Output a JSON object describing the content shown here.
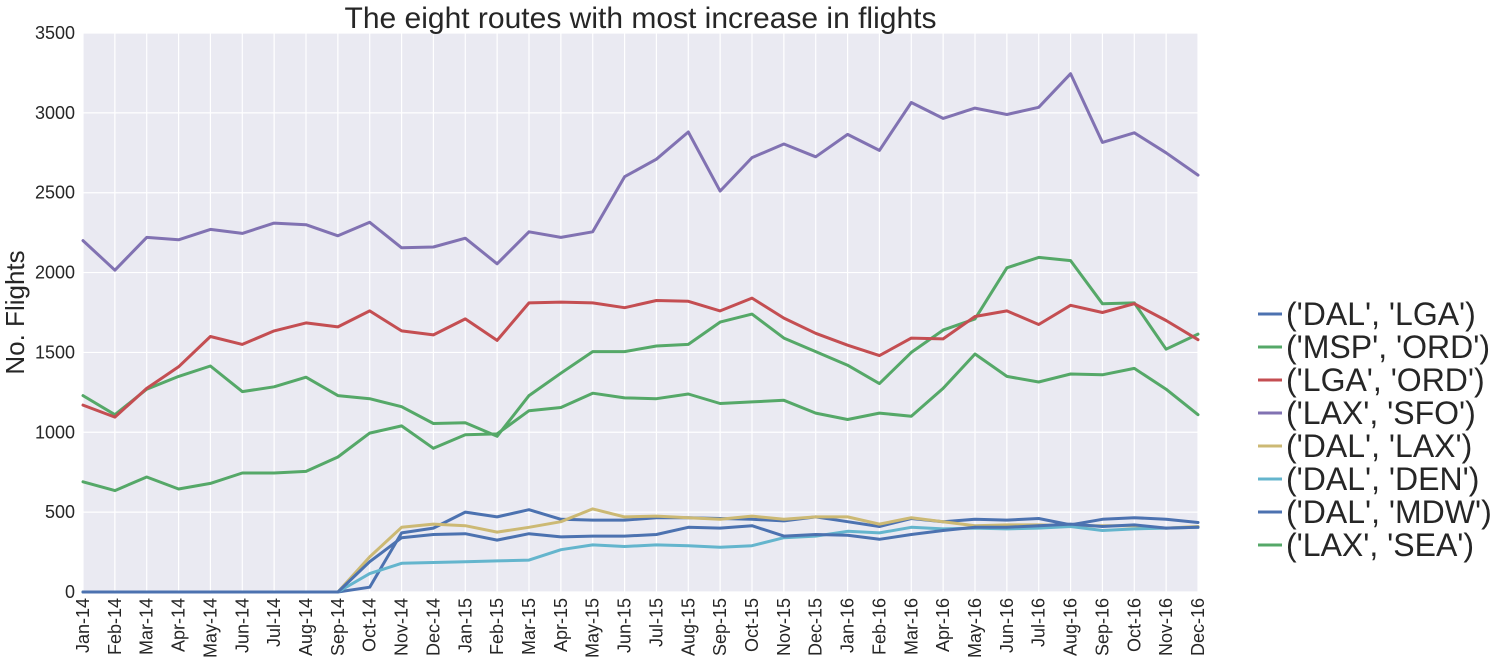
{
  "chart_data": {
    "type": "line",
    "title": "The eight routes with most increase in flights",
    "xlabel": "",
    "ylabel": "No. Flights",
    "ylim": [
      0,
      3500
    ],
    "yticks": [
      0,
      500,
      1000,
      1500,
      2000,
      2500,
      3000,
      3500
    ],
    "grid": true,
    "legend_position": "right",
    "plot_background": "#eaeaf2",
    "categories": [
      "Jan-14",
      "Feb-14",
      "Mar-14",
      "Apr-14",
      "May-14",
      "Jun-14",
      "Jul-14",
      "Aug-14",
      "Sep-14",
      "Oct-14",
      "Nov-14",
      "Dec-14",
      "Jan-15",
      "Feb-15",
      "Mar-15",
      "Apr-15",
      "May-15",
      "Jun-15",
      "Jul-15",
      "Aug-15",
      "Sep-15",
      "Oct-15",
      "Nov-15",
      "Dec-15",
      "Jan-16",
      "Feb-16",
      "Mar-16",
      "Apr-16",
      "May-16",
      "Jun-16",
      "Jul-16",
      "Aug-16",
      "Sep-16",
      "Oct-16",
      "Nov-16",
      "Dec-16"
    ],
    "series": [
      {
        "name": "('DAL', 'LGA')",
        "color": "#4c72b0",
        "values": [
          0,
          0,
          0,
          0,
          0,
          0,
          0,
          0,
          0,
          30,
          370,
          400,
          500,
          470,
          515,
          455,
          450,
          450,
          465,
          465,
          460,
          455,
          445,
          470,
          440,
          410,
          460,
          440,
          455,
          450,
          460,
          420,
          455,
          465,
          455,
          435
        ]
      },
      {
        "name": "('MSP', 'ORD')",
        "color": "#55a868",
        "values": [
          1230,
          1110,
          1270,
          1350,
          1415,
          1255,
          1285,
          1345,
          1230,
          1210,
          1160,
          1055,
          1060,
          975,
          1230,
          1370,
          1505,
          1505,
          1540,
          1550,
          1690,
          1740,
          1590,
          1505,
          1420,
          1305,
          1500,
          1640,
          1710,
          2030,
          2095,
          2075,
          1805,
          1810,
          1520,
          1615
        ]
      },
      {
        "name": "('LGA', 'ORD')",
        "color": "#c44e52",
        "values": [
          1170,
          1095,
          1275,
          1410,
          1600,
          1550,
          1635,
          1685,
          1660,
          1760,
          1635,
          1610,
          1710,
          1575,
          1810,
          1815,
          1810,
          1780,
          1825,
          1820,
          1760,
          1840,
          1715,
          1620,
          1545,
          1480,
          1590,
          1585,
          1725,
          1760,
          1675,
          1795,
          1750,
          1805,
          1700,
          1580
        ]
      },
      {
        "name": "('LAX', 'SFO')",
        "color": "#8172b2",
        "values": [
          2200,
          2015,
          2220,
          2205,
          2270,
          2245,
          2310,
          2300,
          2230,
          2315,
          2155,
          2160,
          2215,
          2055,
          2255,
          2220,
          2255,
          2600,
          2710,
          2880,
          2510,
          2720,
          2805,
          2725,
          2865,
          2765,
          3065,
          2965,
          3030,
          2990,
          3035,
          3245,
          2815,
          2875,
          2750,
          2610
        ]
      },
      {
        "name": "('DAL', 'LAX')",
        "color": "#ccb974",
        "values": [
          0,
          0,
          0,
          0,
          0,
          0,
          0,
          0,
          0,
          220,
          405,
          425,
          415,
          375,
          405,
          440,
          520,
          470,
          475,
          465,
          455,
          475,
          455,
          470,
          470,
          425,
          465,
          440,
          415,
          420,
          420,
          415,
          415,
          415,
          400,
          410
        ]
      },
      {
        "name": "('DAL', 'DEN')",
        "color": "#64b5cd",
        "values": [
          0,
          0,
          0,
          0,
          0,
          0,
          0,
          0,
          0,
          115,
          180,
          185,
          190,
          195,
          200,
          265,
          295,
          285,
          295,
          290,
          280,
          290,
          340,
          350,
          380,
          370,
          405,
          395,
          400,
          395,
          400,
          410,
          385,
          395,
          400,
          405
        ]
      },
      {
        "name": "('DAL', 'MDW')",
        "color": "#4c72b0",
        "values": [
          0,
          0,
          0,
          0,
          0,
          0,
          0,
          0,
          0,
          190,
          340,
          360,
          365,
          325,
          365,
          345,
          350,
          350,
          360,
          405,
          400,
          415,
          350,
          360,
          355,
          330,
          360,
          385,
          405,
          405,
          415,
          425,
          410,
          420,
          400,
          405
        ]
      },
      {
        "name": "('LAX', 'SEA')",
        "color": "#55a868",
        "values": [
          690,
          635,
          720,
          645,
          680,
          745,
          745,
          755,
          845,
          995,
          1040,
          900,
          985,
          990,
          1135,
          1155,
          1245,
          1215,
          1210,
          1240,
          1180,
          1190,
          1200,
          1120,
          1080,
          1120,
          1100,
          1275,
          1490,
          1350,
          1315,
          1365,
          1360,
          1400,
          1270,
          1110
        ]
      }
    ]
  }
}
